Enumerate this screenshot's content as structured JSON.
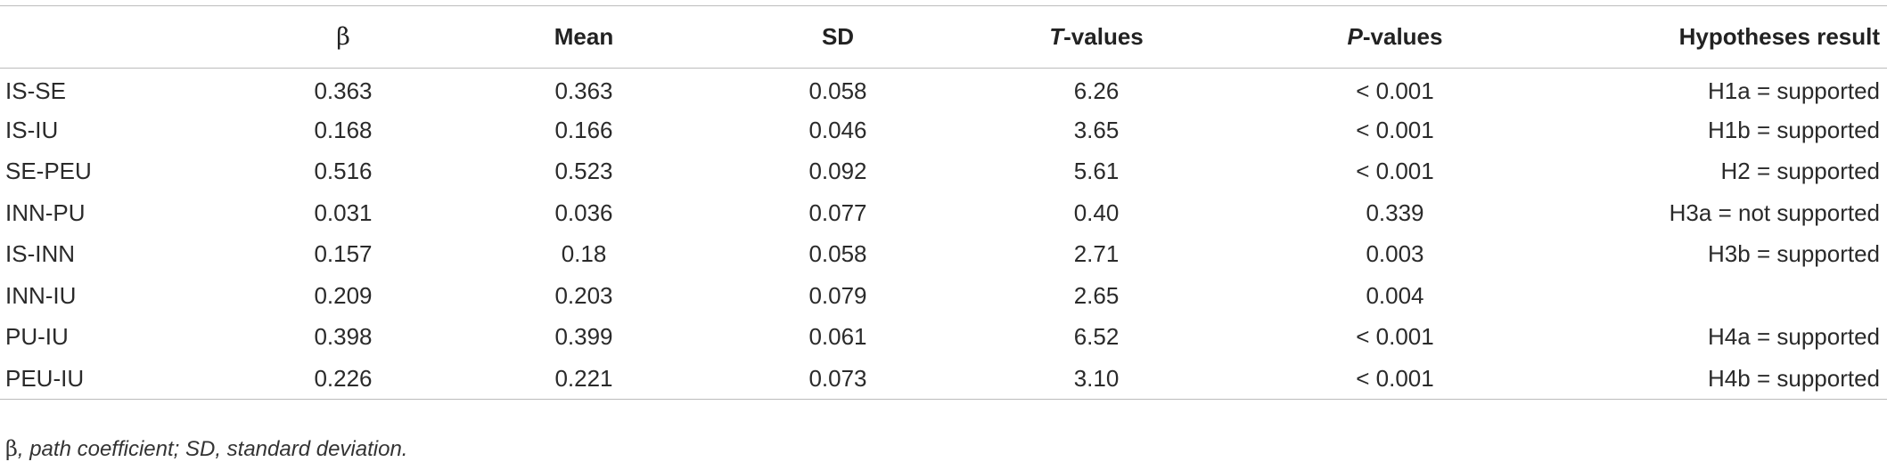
{
  "table": {
    "headers": {
      "path": "",
      "beta": "β",
      "mean": "Mean",
      "sd": "SD",
      "t_italic": "T",
      "t_rest": "-values",
      "p_italic": "P",
      "p_rest": "-values",
      "result": "Hypotheses result"
    },
    "rows": [
      {
        "path": "IS-SE",
        "beta": "0.363",
        "mean": "0.363",
        "sd": "0.058",
        "t": "6.26",
        "p": "< 0.001",
        "result": "H1a = supported"
      },
      {
        "path": "IS-IU",
        "beta": "0.168",
        "mean": "0.166",
        "sd": "0.046",
        "t": "3.65",
        "p": "< 0.001",
        "result": "H1b = supported"
      },
      {
        "path": "SE-PEU",
        "beta": "0.516",
        "mean": "0.523",
        "sd": "0.092",
        "t": "5.61",
        "p": "< 0.001",
        "result": "H2 = supported"
      },
      {
        "path": "INN-PU",
        "beta": "0.031",
        "mean": "0.036",
        "sd": "0.077",
        "t": "0.40",
        "p": "0.339",
        "result": "H3a = not supported"
      },
      {
        "path": "IS-INN",
        "beta": "0.157",
        "mean": "0.18",
        "sd": "0.058",
        "t": "2.71",
        "p": "0.003",
        "result": "H3b = supported"
      },
      {
        "path": "INN-IU",
        "beta": "0.209",
        "mean": "0.203",
        "sd": "0.079",
        "t": "2.65",
        "p": "0.004",
        "result": ""
      },
      {
        "path": "PU-IU",
        "beta": "0.398",
        "mean": "0.399",
        "sd": "0.061",
        "t": "6.52",
        "p": "< 0.001",
        "result": "H4a = supported"
      },
      {
        "path": "PEU-IU",
        "beta": "0.226",
        "mean": "0.221",
        "sd": "0.073",
        "t": "3.10",
        "p": "< 0.001",
        "result": "H4b = supported"
      }
    ]
  },
  "footnote": {
    "symbol": "β",
    "text": ", path coefficient; SD, standard deviation."
  }
}
